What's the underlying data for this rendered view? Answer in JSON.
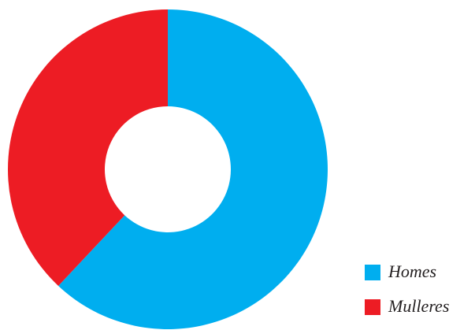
{
  "chart_data": {
    "type": "donut",
    "categories": [
      "Homes",
      "Mulleres"
    ],
    "values": [
      62,
      38
    ],
    "colors": [
      "#00aeef",
      "#ed1c24"
    ],
    "legend": "bottom-right"
  }
}
